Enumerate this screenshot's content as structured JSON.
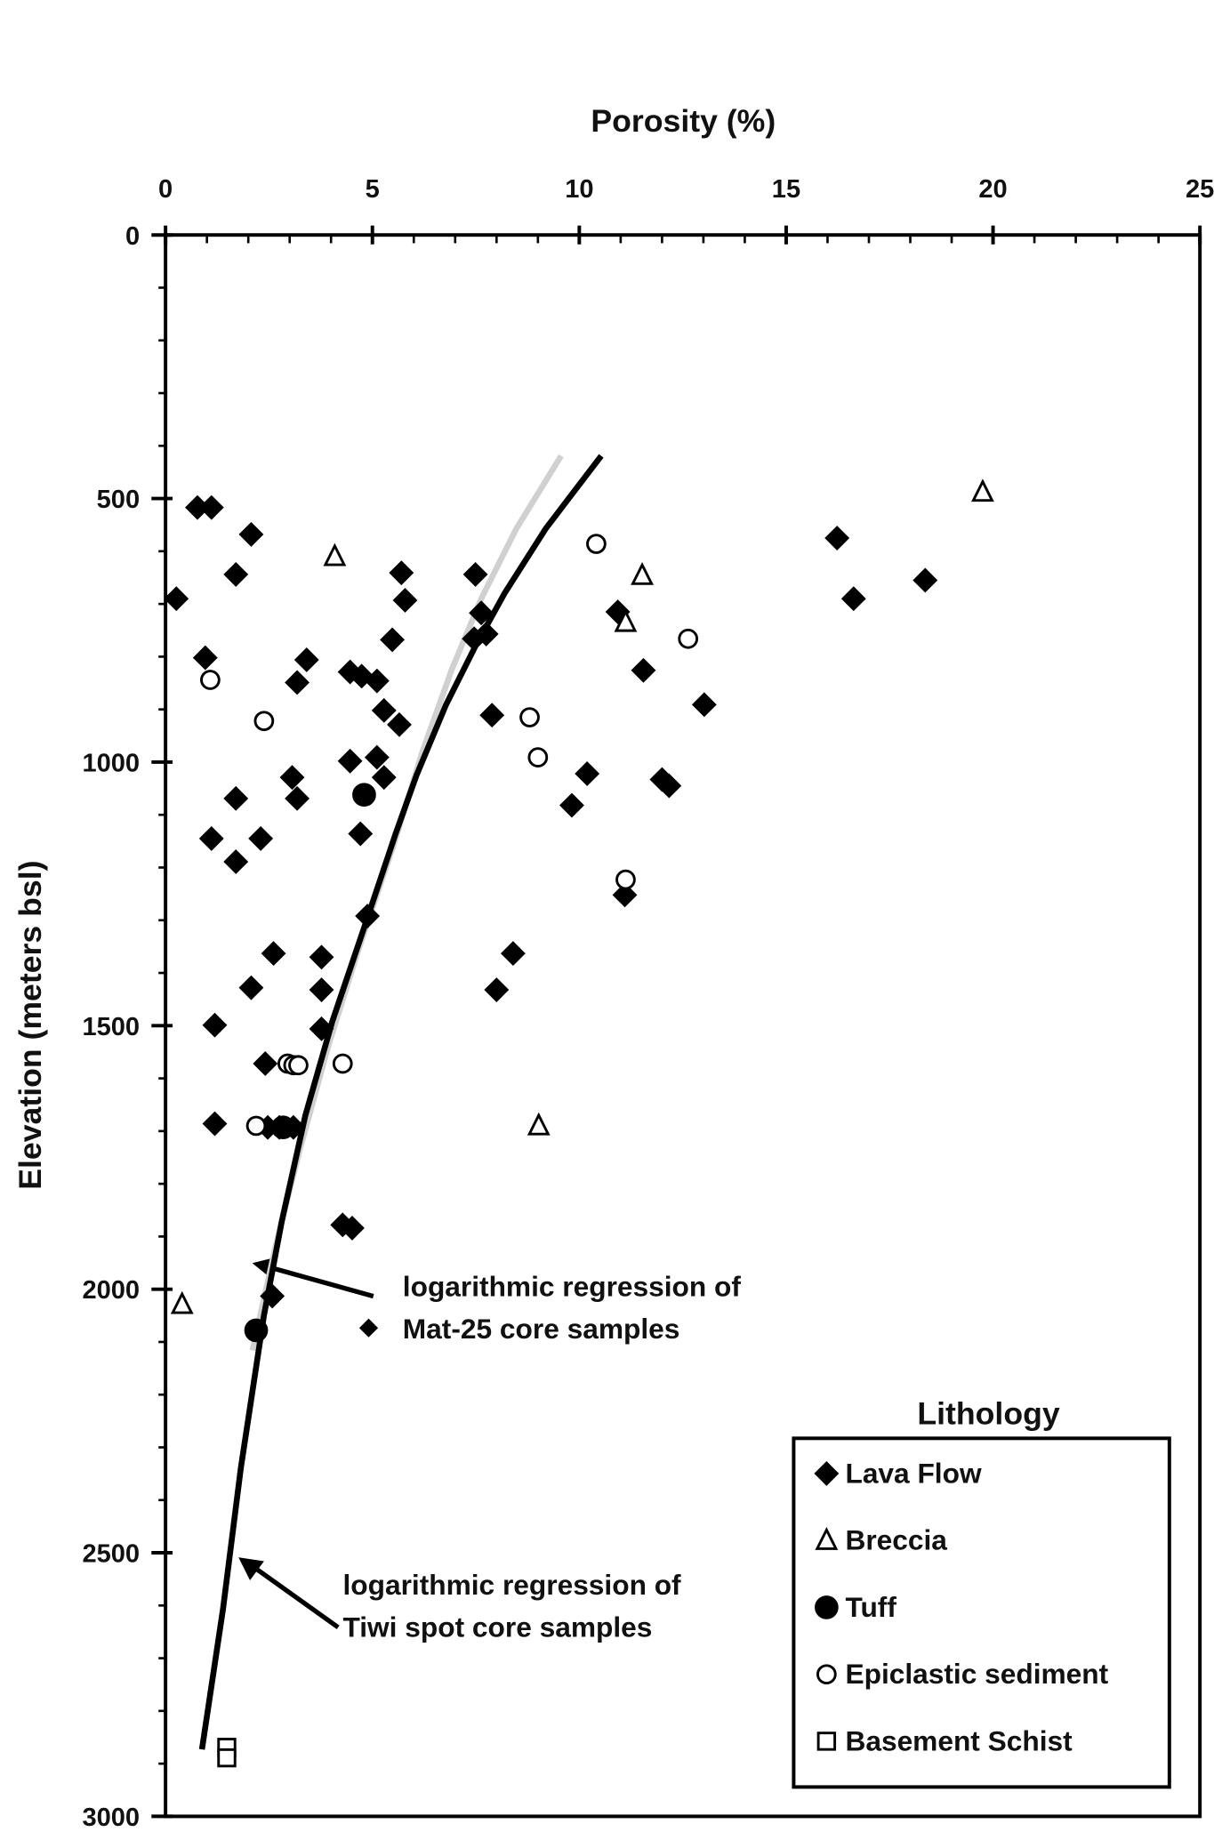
{
  "chart_data": {
    "type": "scatter",
    "xlabel": "Porosity (%)",
    "ylabel": "Elevation  (meters bsl)",
    "x_axis_position": "top",
    "y_inverted": true,
    "xlim": [
      0,
      25
    ],
    "xticks": [
      0,
      5,
      10,
      15,
      20,
      25
    ],
    "ylim": [
      0,
      3000
    ],
    "yticks": [
      0,
      500,
      1000,
      1500,
      2000,
      2500,
      3000
    ],
    "legend_title": "Lithology",
    "legend_position": "lower right",
    "series": [
      {
        "name": "Lava Flow",
        "marker": "diamond",
        "filled": true,
        "color": "#000000",
        "x": [
          0.77,
          1.11,
          2.07,
          1.7,
          0.26,
          0.96,
          3.41,
          3.18,
          4.46,
          4.74,
          5.11,
          5.48,
          5.7,
          5.79,
          5.28,
          5.65,
          7.49,
          7.63,
          7.75,
          7.46,
          7.89,
          4.46,
          5.11,
          5.28,
          3.06,
          3.18,
          1.7,
          1.11,
          2.3,
          1.7,
          4.71,
          4.88,
          2.61,
          3.77,
          2.07,
          3.77,
          3.77,
          1.19,
          8.4,
          8.0,
          2.41,
          1.19,
          2.47,
          2.75,
          3.09,
          4.28,
          4.51,
          2.58,
          10.93,
          11.55,
          13.02,
          10.19,
          9.82,
          12.0,
          12.17,
          11.1,
          16.23,
          16.63,
          18.36
        ],
        "y": [
          517,
          517,
          568,
          644,
          690,
          802,
          806,
          849,
          829,
          837,
          846,
          768,
          641,
          693,
          902,
          929,
          644,
          717,
          757,
          766,
          911,
          998,
          991,
          1029,
          1029,
          1069,
          1069,
          1145,
          1145,
          1189,
          1136,
          1292,
          1363,
          1370,
          1428,
          1432,
          1506,
          1499,
          1363,
          1432,
          1572,
          1686,
          1693,
          1693,
          1693,
          1878,
          1884,
          2013,
          715,
          826,
          891,
          1022,
          1082,
          1033,
          1045,
          1252,
          575,
          690,
          655
        ]
      },
      {
        "name": "Breccia",
        "marker": "triangle",
        "filled": false,
        "color": "#000000",
        "x": [
          19.75,
          4.09,
          11.52,
          11.12,
          9.02,
          0.4
        ],
        "y": [
          488,
          610,
          646,
          735,
          1690,
          2029
        ]
      },
      {
        "name": "Tuff",
        "marker": "circle",
        "filled": true,
        "color": "#000000",
        "x": [
          4.8,
          2.84,
          2.19
        ],
        "y": [
          1062,
          1693,
          2078
        ]
      },
      {
        "name": "Epiclastic sediment",
        "marker": "circle",
        "filled": false,
        "color": "#000000",
        "x": [
          1.08,
          2.38,
          10.41,
          12.63,
          8.8,
          9.0,
          11.12,
          4.28,
          2.19,
          2.95,
          3.09,
          3.21
        ],
        "y": [
          844,
          922,
          586,
          766,
          915,
          991,
          1223,
          1572,
          1690,
          1572,
          1575,
          1575
        ]
      },
      {
        "name": "Basement Schist",
        "marker": "square",
        "filled": false,
        "color": "#000000",
        "x": [
          1.48,
          1.48
        ],
        "y": [
          2869,
          2889
        ]
      }
    ],
    "curves": [
      {
        "color": "#d0d0d0",
        "x": [
          9.56,
          8.48,
          7.63,
          6.92,
          6.21,
          5.51,
          4.65,
          3.94,
          3.24,
          2.67,
          2.1
        ],
        "y": [
          419,
          557,
          690,
          824,
          980,
          1158,
          1359,
          1537,
          1737,
          1915,
          2116
        ]
      },
      {
        "color": "#000000",
        "x": [
          10.53,
          9.19,
          8.2,
          7.49,
          6.78,
          6.07,
          5.56,
          4.8,
          4.03,
          3.38,
          2.81,
          2.38,
          1.82,
          1.39,
          0.88
        ],
        "y": [
          419,
          557,
          679,
          780,
          891,
          1024,
          1136,
          1314,
          1492,
          1670,
          1871,
          2049,
          2339,
          2606,
          2873
        ]
      }
    ],
    "annotations": [
      {
        "lines": [
          "logarithmic regression of",
          "Mat-25 core samples"
        ]
      },
      {
        "lines": [
          "logarithmic regression of",
          "Tiwi spot core samples"
        ]
      }
    ]
  }
}
